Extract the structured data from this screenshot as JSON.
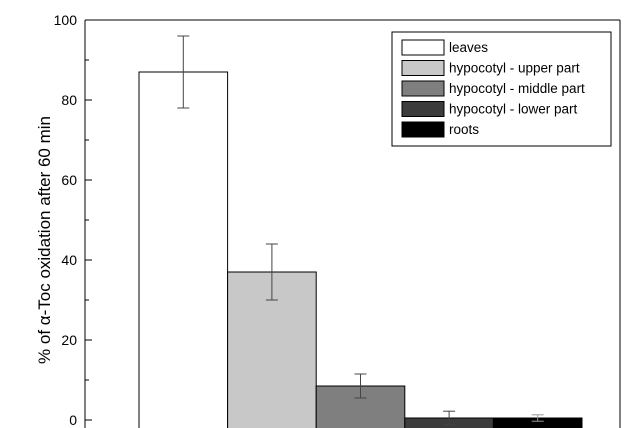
{
  "chart_data": {
    "type": "bar",
    "ylabel": "% of α-Toc oxidation after 60 min",
    "xlabel": "",
    "ylim": [
      -2,
      100
    ],
    "yticks": [
      0,
      20,
      40,
      60,
      80,
      100
    ],
    "grid": false,
    "legend_position": "top-right",
    "series": [
      {
        "name": "leaves",
        "value": 87,
        "error": 9,
        "color": "#ffffff"
      },
      {
        "name": "hypocotyl - upper part",
        "value": 37,
        "error": 7,
        "color": "#c8c8c8"
      },
      {
        "name": "hypocotyl - middle part",
        "value": 8.5,
        "error": 3,
        "color": "#7f7f7f"
      },
      {
        "name": "hypocotyl - lower part",
        "value": 0.5,
        "error": 1.7,
        "color": "#3c3c3c"
      },
      {
        "name": "roots",
        "value": 0.5,
        "error": 0.8,
        "color": "#000000"
      }
    ]
  }
}
